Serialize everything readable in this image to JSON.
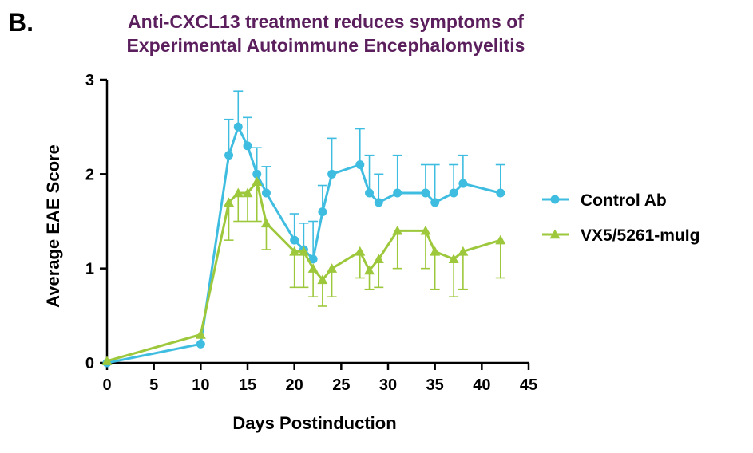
{
  "panel_label": "B.",
  "colors": {
    "title": "#5c1f5e",
    "control": "#3fbde0",
    "treatment": "#9dc83c",
    "axis": "#000000"
  },
  "chart_data": {
    "type": "line",
    "title_lines": [
      "Anti-CXCL13 treatment reduces symptoms of",
      "Experimental Autoimmune Encephalomyelitis"
    ],
    "xlabel": "Days Postinduction",
    "ylabel": "Average EAE Score",
    "xlim": [
      0,
      45
    ],
    "ylim": [
      0,
      3
    ],
    "xticks": [
      0,
      5,
      10,
      15,
      20,
      25,
      30,
      35,
      40,
      45
    ],
    "yticks": [
      0,
      1,
      2,
      3
    ],
    "legend_position": "right",
    "series": [
      {
        "name": "Control Ab",
        "marker": "circle",
        "x": [
          0,
          10,
          13,
          14,
          15,
          16,
          17,
          20,
          21,
          22,
          23,
          24,
          27,
          28,
          29,
          31,
          34,
          35,
          37,
          38,
          42
        ],
        "y": [
          0,
          0.2,
          2.2,
          2.5,
          2.3,
          2.0,
          1.8,
          1.3,
          1.2,
          1.1,
          1.6,
          2.0,
          2.1,
          1.8,
          1.7,
          1.8,
          1.8,
          1.7,
          1.8,
          1.9,
          1.8
        ],
        "err": [
          0,
          0,
          0.38,
          0.38,
          0.3,
          0.28,
          0.28,
          0.28,
          0.28,
          0.4,
          0.28,
          0.38,
          0.38,
          0.4,
          0.3,
          0.4,
          0.3,
          0.4,
          0.3,
          0.3,
          0.3
        ],
        "err_dir": "up"
      },
      {
        "name": "VX5/5261-muIg",
        "marker": "triangle",
        "x": [
          0,
          10,
          13,
          14,
          15,
          16,
          17,
          20,
          21,
          22,
          23,
          24,
          27,
          28,
          29,
          31,
          34,
          35,
          37,
          38,
          42
        ],
        "y": [
          0.02,
          0.3,
          1.7,
          1.8,
          1.8,
          1.92,
          1.48,
          1.18,
          1.18,
          1.0,
          0.88,
          1.0,
          1.18,
          0.98,
          1.1,
          1.4,
          1.4,
          1.18,
          1.1,
          1.18,
          1.3
        ],
        "err": [
          0,
          0,
          0.4,
          0.3,
          0.3,
          0.42,
          0.28,
          0.38,
          0.38,
          0.3,
          0.28,
          0.3,
          0.28,
          0.2,
          0.3,
          0.4,
          0.4,
          0.4,
          0.4,
          0.4,
          0.4
        ],
        "err_dir": "down"
      }
    ]
  }
}
